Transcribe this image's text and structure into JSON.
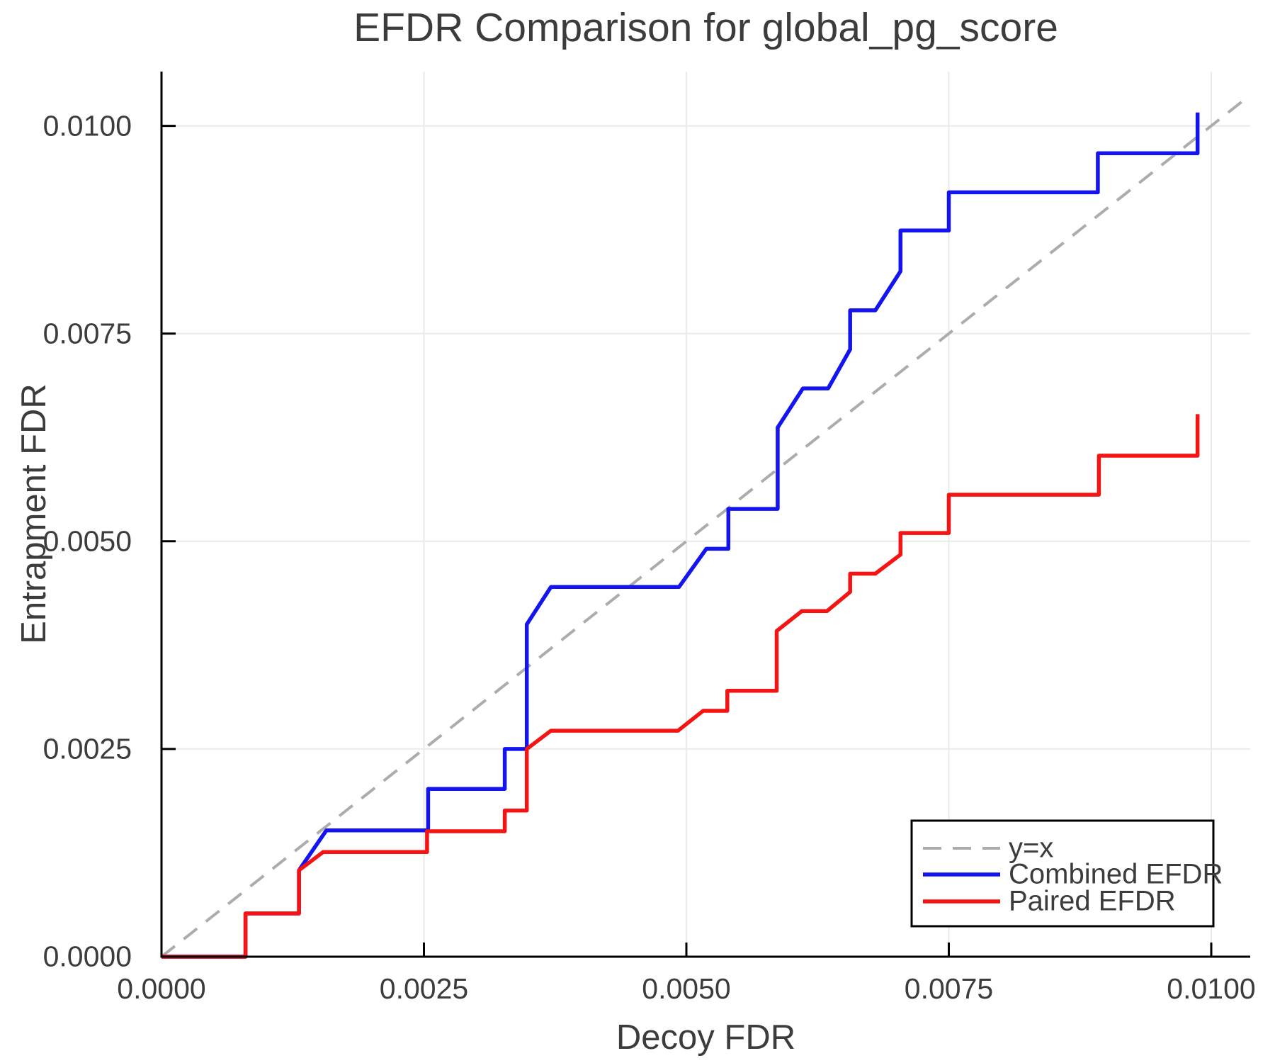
{
  "title": "EFDR Comparison for global_pg_score",
  "axes": {
    "x": {
      "label": "Decoy FDR",
      "tick_values": [
        0,
        0.0025,
        0.005,
        0.0075,
        0.01
      ],
      "tick_labels": [
        "0.0000",
        "0.0025",
        "0.0050",
        "0.0075",
        "0.0100"
      ]
    },
    "y": {
      "label": "Entrapment FDR",
      "tick_values": [
        0,
        0.0025,
        0.005,
        0.0075,
        0.01
      ],
      "tick_labels": [
        "0.0000",
        "0.0025",
        "0.0050",
        "0.0075",
        "0.0100"
      ]
    }
  },
  "legend": {
    "position": "bottom-right",
    "entries": [
      {
        "label": "y=x",
        "color": "#ACACAC",
        "dashed": true
      },
      {
        "label": "Combined EFDR",
        "color": "#1414F0",
        "dashed": false
      },
      {
        "label": "Paired EFDR",
        "color": "#F41414",
        "dashed": false
      }
    ]
  },
  "colors": {
    "grid": "#EAEAEA",
    "axis": "#000000",
    "text": "#3C3C3C",
    "identity_line": "#ACACAC",
    "combined": "#1414F0",
    "paired": "#F41414"
  },
  "chart_data": {
    "type": "line",
    "title": "EFDR Comparison for global_pg_score",
    "xlabel": "Decoy FDR",
    "ylabel": "Entrapment FDR",
    "xlim": [
      0,
      0.01037
    ],
    "ylim": [
      0,
      0.01065
    ],
    "grid": true,
    "legend_position": "bottom-right",
    "series": [
      {
        "name": "y=x",
        "style": "dashed",
        "color": "#ACACAC",
        "points": [
          [
            0,
            0
          ],
          [
            0.010371,
            0.010371
          ]
        ]
      },
      {
        "name": "Combined EFDR",
        "style": "solid",
        "color": "#1414F0",
        "points": [
          [
            0,
            0
          ],
          [
            0.0008,
            0
          ],
          [
            0.0008,
            0.00052
          ],
          [
            0.00131,
            0.00052
          ],
          [
            0.00131,
            0.00104
          ],
          [
            0.00157,
            0.00152
          ],
          [
            0.00254,
            0.00152
          ],
          [
            0.00254,
            0.00202
          ],
          [
            0.00327,
            0.00202
          ],
          [
            0.00327,
            0.0025
          ],
          [
            0.00348,
            0.0025
          ],
          [
            0.00348,
            0.004
          ],
          [
            0.00371,
            0.00445
          ],
          [
            0.00493,
            0.00445
          ],
          [
            0.00519,
            0.00491
          ],
          [
            0.0054,
            0.00491
          ],
          [
            0.0054,
            0.00539
          ],
          [
            0.00587,
            0.00539
          ],
          [
            0.00587,
            0.00637
          ],
          [
            0.00611,
            0.00684
          ],
          [
            0.00635,
            0.00684
          ],
          [
            0.00656,
            0.00731
          ],
          [
            0.00656,
            0.00778
          ],
          [
            0.0068,
            0.00778
          ],
          [
            0.00704,
            0.00825
          ],
          [
            0.00704,
            0.00874
          ],
          [
            0.0075,
            0.00874
          ],
          [
            0.0075,
            0.0092
          ],
          [
            0.00892,
            0.0092
          ],
          [
            0.00892,
            0.00967
          ],
          [
            0.00987,
            0.00967
          ],
          [
            0.00987,
            0.01016
          ]
        ]
      },
      {
        "name": "Paired EFDR",
        "style": "solid",
        "color": "#F41414",
        "points": [
          [
            0,
            0
          ],
          [
            0.0008,
            0
          ],
          [
            0.0008,
            0.00052
          ],
          [
            0.00131,
            0.00052
          ],
          [
            0.00131,
            0.00104
          ],
          [
            0.00154,
            0.00126
          ],
          [
            0.00253,
            0.00126
          ],
          [
            0.00253,
            0.00151
          ],
          [
            0.00327,
            0.00151
          ],
          [
            0.00327,
            0.00176
          ],
          [
            0.00348,
            0.00176
          ],
          [
            0.00348,
            0.0025
          ],
          [
            0.00371,
            0.00272
          ],
          [
            0.00492,
            0.00272
          ],
          [
            0.00516,
            0.00296
          ],
          [
            0.00539,
            0.00296
          ],
          [
            0.00539,
            0.0032
          ],
          [
            0.00586,
            0.0032
          ],
          [
            0.00586,
            0.00392
          ],
          [
            0.0061,
            0.00416
          ],
          [
            0.00634,
            0.00416
          ],
          [
            0.00656,
            0.00439
          ],
          [
            0.00656,
            0.00461
          ],
          [
            0.0068,
            0.00461
          ],
          [
            0.00704,
            0.00484
          ],
          [
            0.00704,
            0.0051
          ],
          [
            0.0075,
            0.0051
          ],
          [
            0.0075,
            0.00556
          ],
          [
            0.00893,
            0.00556
          ],
          [
            0.00893,
            0.00603
          ],
          [
            0.00987,
            0.00603
          ],
          [
            0.00987,
            0.00653
          ]
        ]
      }
    ]
  }
}
